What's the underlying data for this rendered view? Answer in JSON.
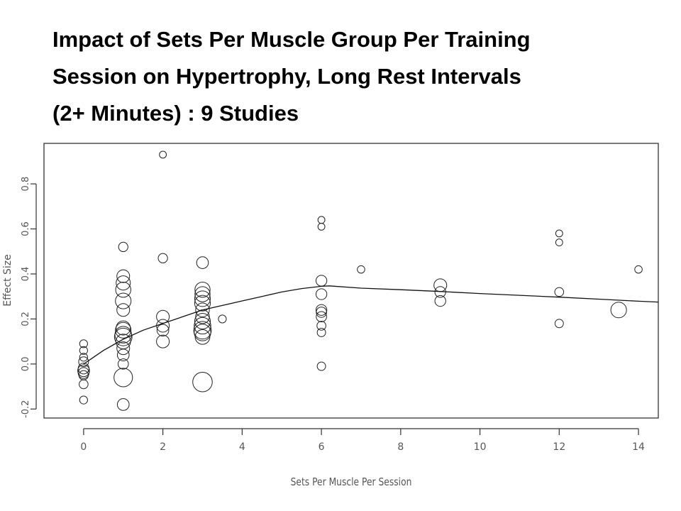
{
  "page": {
    "title_lines": [
      "Impact of Sets Per Muscle Group Per Training",
      "Session on Hypertrophy, Long Rest Intervals",
      "(2+ Minutes) : 9 Studies"
    ]
  },
  "chart_data": {
    "type": "scatter",
    "title": "Impact of Sets Per Muscle Group Per Training Session on Hypertrophy, Long Rest Intervals (2+ Minutes) : 9 Studies",
    "xlabel": "Sets Per Muscle Per Session",
    "ylabel": "Effect Size",
    "xlim": [
      -1,
      14.5
    ],
    "ylim": [
      -0.24,
      0.98
    ],
    "x_ticks": [
      0,
      2,
      4,
      6,
      8,
      10,
      12,
      14
    ],
    "y_ticks": [
      -0.2,
      0.0,
      0.2,
      0.4,
      0.6,
      0.8
    ],
    "y_tick_labels": [
      "-0.2",
      "0.0",
      "0.2",
      "0.4",
      "0.6",
      "0.8"
    ],
    "points": [
      {
        "x": 0,
        "y": 0.09,
        "w": 1
      },
      {
        "x": 0,
        "y": 0.06,
        "w": 1
      },
      {
        "x": 0,
        "y": 0.03,
        "w": 1
      },
      {
        "x": 0,
        "y": 0.01,
        "w": 1.4
      },
      {
        "x": 0,
        "y": -0.02,
        "w": 1.6
      },
      {
        "x": 0,
        "y": -0.03,
        "w": 1.8
      },
      {
        "x": 0,
        "y": -0.04,
        "w": 1.6
      },
      {
        "x": 0,
        "y": -0.05,
        "w": 1.3
      },
      {
        "x": 0,
        "y": -0.09,
        "w": 1.2
      },
      {
        "x": 0,
        "y": -0.16,
        "w": 1
      },
      {
        "x": 1,
        "y": 0.52,
        "w": 1.3
      },
      {
        "x": 1,
        "y": 0.39,
        "w": 2
      },
      {
        "x": 1,
        "y": 0.36,
        "w": 2.3
      },
      {
        "x": 1,
        "y": 0.33,
        "w": 2.5
      },
      {
        "x": 1,
        "y": 0.28,
        "w": 2.6
      },
      {
        "x": 1,
        "y": 0.24,
        "w": 2
      },
      {
        "x": 1,
        "y": 0.16,
        "w": 2.3
      },
      {
        "x": 1,
        "y": 0.15,
        "w": 2.6
      },
      {
        "x": 1,
        "y": 0.13,
        "w": 2.8
      },
      {
        "x": 1,
        "y": 0.12,
        "w": 3
      },
      {
        "x": 1,
        "y": 0.1,
        "w": 2.4
      },
      {
        "x": 1,
        "y": 0.07,
        "w": 2
      },
      {
        "x": 1,
        "y": 0.04,
        "w": 1.8
      },
      {
        "x": 1,
        "y": 0.0,
        "w": 1.5
      },
      {
        "x": 1,
        "y": -0.06,
        "w": 3.2
      },
      {
        "x": 1,
        "y": -0.18,
        "w": 1.8
      },
      {
        "x": 2,
        "y": 0.93,
        "w": 0.8
      },
      {
        "x": 2,
        "y": 0.47,
        "w": 1.3
      },
      {
        "x": 2,
        "y": 0.21,
        "w": 2
      },
      {
        "x": 2,
        "y": 0.17,
        "w": 2
      },
      {
        "x": 2,
        "y": 0.15,
        "w": 1.8
      },
      {
        "x": 2,
        "y": 0.1,
        "w": 2
      },
      {
        "x": 3,
        "y": 0.45,
        "w": 1.8
      },
      {
        "x": 3,
        "y": 0.33,
        "w": 2.5
      },
      {
        "x": 3,
        "y": 0.31,
        "w": 2.5
      },
      {
        "x": 3,
        "y": 0.29,
        "w": 2.6
      },
      {
        "x": 3,
        "y": 0.27,
        "w": 2.6
      },
      {
        "x": 3,
        "y": 0.24,
        "w": 2.2
      },
      {
        "x": 3,
        "y": 0.21,
        "w": 2.2
      },
      {
        "x": 3,
        "y": 0.19,
        "w": 2.6
      },
      {
        "x": 3,
        "y": 0.17,
        "w": 2.8
      },
      {
        "x": 3,
        "y": 0.15,
        "w": 3
      },
      {
        "x": 3,
        "y": 0.14,
        "w": 2.8
      },
      {
        "x": 3,
        "y": 0.12,
        "w": 2.4
      },
      {
        "x": 3,
        "y": -0.08,
        "w": 3.4
      },
      {
        "x": 3.5,
        "y": 0.2,
        "w": 1
      },
      {
        "x": 6,
        "y": 0.64,
        "w": 0.8
      },
      {
        "x": 6,
        "y": 0.61,
        "w": 0.8
      },
      {
        "x": 6,
        "y": 0.37,
        "w": 1.6
      },
      {
        "x": 6,
        "y": 0.31,
        "w": 1.6
      },
      {
        "x": 6,
        "y": 0.24,
        "w": 1.6
      },
      {
        "x": 6,
        "y": 0.23,
        "w": 1.5
      },
      {
        "x": 6,
        "y": 0.21,
        "w": 1.5
      },
      {
        "x": 6,
        "y": 0.17,
        "w": 1.2
      },
      {
        "x": 6,
        "y": 0.14,
        "w": 1.1
      },
      {
        "x": 6,
        "y": -0.01,
        "w": 1.1
      },
      {
        "x": 7,
        "y": 0.42,
        "w": 0.9
      },
      {
        "x": 9,
        "y": 0.35,
        "w": 2
      },
      {
        "x": 9,
        "y": 0.32,
        "w": 1.6
      },
      {
        "x": 9,
        "y": 0.28,
        "w": 1.6
      },
      {
        "x": 12,
        "y": 0.58,
        "w": 0.8
      },
      {
        "x": 12,
        "y": 0.54,
        "w": 0.8
      },
      {
        "x": 12,
        "y": 0.32,
        "w": 1.2
      },
      {
        "x": 12,
        "y": 0.18,
        "w": 1.1
      },
      {
        "x": 13.5,
        "y": 0.24,
        "w": 2.6
      },
      {
        "x": 14,
        "y": 0.42,
        "w": 0.9
      }
    ],
    "trend_line": {
      "x": [
        0,
        0.5,
        1,
        1.5,
        2,
        2.5,
        3,
        3.5,
        4,
        4.5,
        5,
        5.5,
        6,
        6.2,
        7,
        8,
        9,
        10,
        11,
        12,
        13,
        14,
        14.5
      ],
      "y": [
        0.0,
        0.06,
        0.11,
        0.15,
        0.18,
        0.21,
        0.24,
        0.26,
        0.28,
        0.3,
        0.32,
        0.335,
        0.345,
        0.347,
        0.337,
        0.33,
        0.322,
        0.313,
        0.305,
        0.297,
        0.288,
        0.279,
        0.275
      ]
    }
  }
}
